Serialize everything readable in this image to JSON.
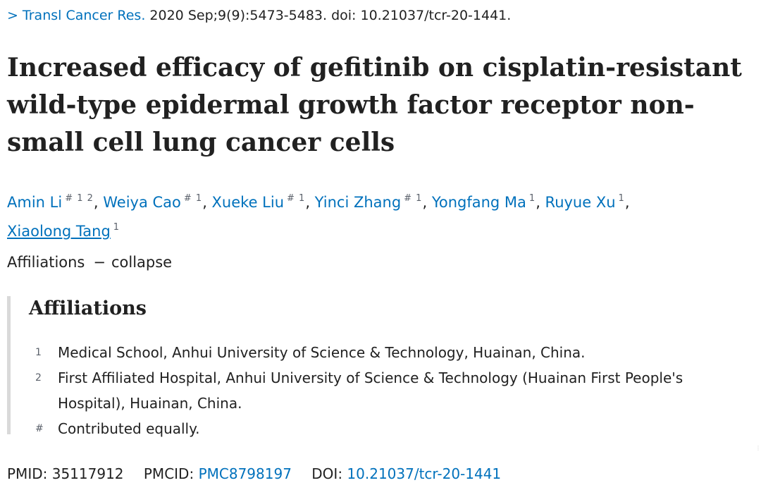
{
  "citation": {
    "chevron": ">",
    "journal": "Transl Cancer Res.",
    "details": "2020 Sep;9(9):5473-5483. doi: 10.21037/tcr-20-1441."
  },
  "title": "Increased efficacy of gefitinib on cisplatin-resistant wild-type epidermal growth factor receptor non-small cell lung cancer cells",
  "authors": [
    {
      "name": "Amin Li",
      "sup": "# 1 2"
    },
    {
      "name": "Weiya Cao",
      "sup": "# 1"
    },
    {
      "name": "Xueke Liu",
      "sup": "# 1"
    },
    {
      "name": "Yinci Zhang",
      "sup": "# 1"
    },
    {
      "name": "Yongfang Ma",
      "sup": "1"
    },
    {
      "name": "Ruyue Xu",
      "sup": "1"
    },
    {
      "name": "Xiaolong Tang",
      "sup": "1"
    }
  ],
  "affiliations_toggle": {
    "label": "Affiliations",
    "dash": "−",
    "action": "collapse"
  },
  "affiliations": {
    "heading": "Affiliations",
    "items": [
      {
        "key": "1",
        "text": "Medical School, Anhui University of Science & Technology, Huainan, China."
      },
      {
        "key": "2",
        "text": "First Affiliated Hospital, Anhui University of Science & Technology (Huainan First People's Hospital), Huainan, China."
      },
      {
        "key": "#",
        "text": "Contributed equally."
      }
    ]
  },
  "identifiers": {
    "pmid_label": "PMID:",
    "pmid": "35117912",
    "pmcid_label": "PMCID:",
    "pmcid": "PMC8798197",
    "doi_label": "DOI:",
    "doi": "10.21037/tcr-20-1441"
  },
  "colors": {
    "link": "#0071bc",
    "text": "#212121",
    "muted": "#5b616b",
    "rule": "#d9d9d9"
  }
}
